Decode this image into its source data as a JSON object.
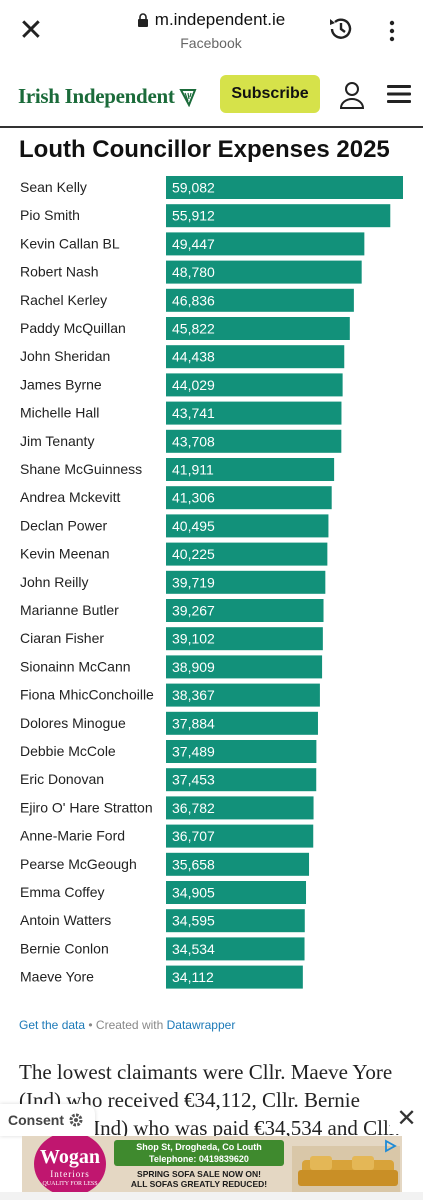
{
  "browser": {
    "url": "m.independent.ie",
    "subtitle": "Facebook"
  },
  "site": {
    "logo_text": "Irish Independent",
    "subscribe_label": "Subscribe"
  },
  "chart_data": {
    "type": "bar",
    "orientation": "horizontal",
    "title": "Louth Councillor Expenses 2025",
    "bar_color": "#12917a",
    "categories": [
      "Sean Kelly",
      "Pio Smith",
      "Kevin Callan BL",
      "Robert Nash",
      "Rachel Kerley",
      "Paddy McQuillan",
      "John Sheridan",
      "James Byrne",
      "Michelle Hall",
      "Jim Tenanty",
      "Shane McGuinness",
      "Andrea Mckevitt",
      "Declan Power",
      "Kevin Meenan",
      "John Reilly",
      "Marianne Butler",
      "Ciaran Fisher",
      "Sionainn McCann",
      "Fiona MhicConchoille",
      "Dolores Minogue",
      "Debbie McCole",
      "Eric Donovan",
      "Ejiro O' Hare Stratton",
      "Anne-Marie Ford",
      "Pearse McGeough",
      "Emma Coffey",
      "Antoin Watters",
      "Bernie Conlon",
      "Maeve Yore"
    ],
    "values": [
      59082,
      55912,
      49447,
      48780,
      46836,
      45822,
      44438,
      44029,
      43741,
      43708,
      41911,
      41306,
      40495,
      40225,
      39719,
      39267,
      39102,
      38909,
      38367,
      37884,
      37489,
      37453,
      36782,
      36707,
      35658,
      34905,
      34595,
      34534,
      34112
    ],
    "labels": [
      "59,082",
      "55,912",
      "49,447",
      "48,780",
      "46,836",
      "45,822",
      "44,438",
      "44,029",
      "43,741",
      "43,708",
      "41,911",
      "41,306",
      "40,495",
      "40,225",
      "39,719",
      "39,267",
      "39,102",
      "38,909",
      "38,367",
      "37,884",
      "37,489",
      "37,453",
      "36,782",
      "36,707",
      "35,658",
      "34,905",
      "34,595",
      "34,534",
      "34,112"
    ]
  },
  "chart_footer": {
    "get_data": "Get the data",
    "separator": " • Created with ",
    "tool": "Datawrapper"
  },
  "article": {
    "text": "The lowest claimants were Cllr. Maeve Yore (Ind) who received €34,112, Cllr. Bernie Conlon (Ind) who was paid €34,534 and Cllr."
  },
  "consent": {
    "label": "Consent"
  },
  "ad": {
    "brand": "Wogan",
    "brand_sub": "Interiors",
    "brand_tag": "QUALITY FOR LESS",
    "address": "Shop St, Drogheda, Co Louth",
    "phone": "Telephone: 0419839620",
    "promo_line1": "SPRING SOFA SALE NOW ON!",
    "promo_line2": "ALL SOFAS GREATLY REDUCED!"
  }
}
